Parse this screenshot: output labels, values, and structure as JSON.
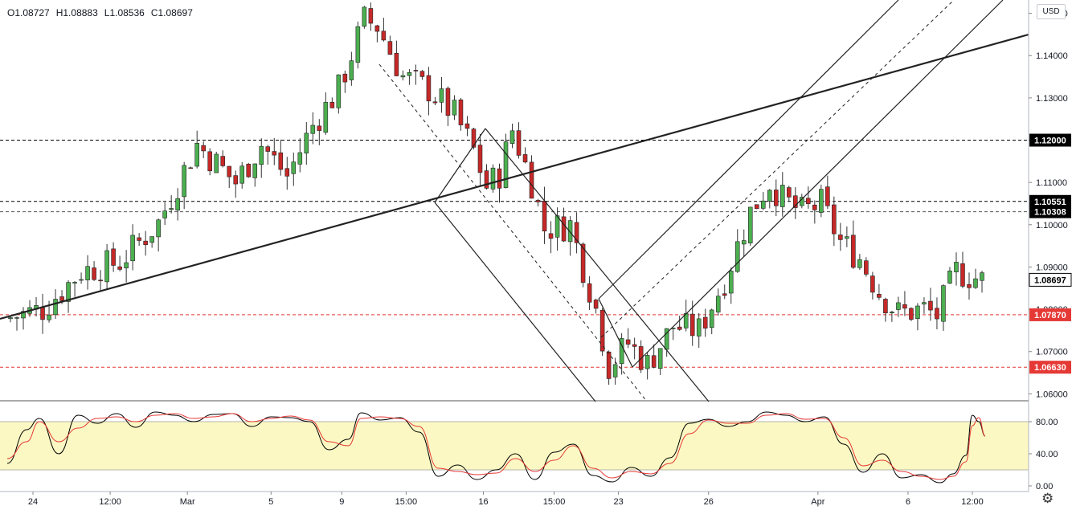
{
  "ohlc": {
    "open": "O1.08727",
    "high": "H1.08883",
    "low": "L1.08536",
    "close": "C1.08697"
  },
  "currency": "USD",
  "colors": {
    "up": "#26a69a",
    "down": "#ef5350",
    "candle_up": "#4caf50",
    "candle_down": "#c62828",
    "stoch_k": "#000000",
    "stoch_d": "#e53935",
    "band": "#fbf8c3",
    "red_level": "#e53935"
  },
  "icons": {
    "settings": "gear-icon"
  },
  "chart_data": [
    {
      "type": "candlestick",
      "title": "",
      "ylim": [
        1.0595,
        1.1503
      ],
      "x_tick_labels": [
        "24",
        "12:00",
        "Mar",
        "5",
        "9",
        "15:00",
        "16",
        "15:00",
        "23",
        "26",
        "Apr",
        "6",
        "12:00"
      ],
      "y_tick_labels": [
        "1.06000",
        "1.07000",
        "1.08000",
        "1.09000",
        "1.10000",
        "1.11000",
        "1.12000",
        "1.13000",
        "1.14000",
        "1.15000"
      ],
      "y_ticks": [
        1.06,
        1.07,
        1.08,
        1.09,
        1.1,
        1.11,
        1.12,
        1.13,
        1.14,
        1.15
      ],
      "price_labels": [
        {
          "value": "1.12000",
          "level": 1.12,
          "style": "dark"
        },
        {
          "value": "1.10551",
          "level": 1.10551,
          "style": "dark"
        },
        {
          "value": "1.10308",
          "level": 1.10308,
          "style": "dark"
        },
        {
          "value": "1.08697",
          "level": 1.08697,
          "style": "current"
        },
        {
          "value": "1.07870",
          "level": 1.0787,
          "style": "red"
        },
        {
          "value": "1.06630",
          "level": 1.0663,
          "style": "red"
        }
      ],
      "horizontal_levels": [
        {
          "y": 1.12,
          "color": "#000000",
          "style": "dashed"
        },
        {
          "y": 1.10551,
          "color": "#000000",
          "style": "dashed"
        },
        {
          "y": 1.10308,
          "color": "#555555",
          "style": "dashed"
        },
        {
          "y": 1.0787,
          "color": "#e53935",
          "style": "dashed"
        },
        {
          "y": 1.0663,
          "color": "#e53935",
          "style": "dashed"
        }
      ],
      "anchors": [
        [
          0,
          1.0777
        ],
        [
          6,
          1.08
        ],
        [
          12,
          1.089
        ],
        [
          18,
          1.0912
        ],
        [
          24,
          1.1005
        ],
        [
          30,
          1.119
        ],
        [
          36,
          1.11
        ],
        [
          40,
          1.119
        ],
        [
          44,
          1.1115
        ],
        [
          48,
          1.1235
        ],
        [
          52,
          1.132
        ],
        [
          56,
          1.1485
        ],
        [
          58,
          1.147
        ],
        [
          62,
          1.135
        ],
        [
          66,
          1.132
        ],
        [
          70,
          1.126
        ],
        [
          73,
          1.1175
        ],
        [
          75,
          1.109
        ],
        [
          77,
          1.112
        ],
        [
          79,
          1.1225
        ],
        [
          82,
          1.11
        ],
        [
          84,
          1.099
        ],
        [
          88,
          1.1
        ],
        [
          90,
          1.09
        ],
        [
          92,
          1.08
        ],
        [
          94,
          1.0665
        ],
        [
          97,
          1.072
        ],
        [
          100,
          1.067
        ],
        [
          104,
          1.076
        ],
        [
          108,
          1.075
        ],
        [
          112,
          1.087
        ],
        [
          116,
          1.103
        ],
        [
          119,
          1.11
        ],
        [
          121,
          1.106
        ],
        [
          124,
          1.103
        ],
        [
          127,
          1.105
        ],
        [
          130,
          1.096
        ],
        [
          133,
          1.092
        ],
        [
          136,
          1.084
        ],
        [
          139,
          1.079
        ],
        [
          143,
          1.08
        ],
        [
          145,
          1.0785
        ],
        [
          148,
          1.089
        ],
        [
          152,
          1.0869
        ]
      ],
      "candle_count": 152,
      "stochastic": {
        "ylim": [
          0,
          100
        ],
        "y_tick_labels": [
          "0.00",
          "40.00",
          "80.00"
        ],
        "y_ticks": [
          0,
          40,
          80
        ],
        "band": [
          20,
          80
        ],
        "k_series": [
          [
            0,
            28
          ],
          [
            3,
            70
          ],
          [
            5,
            84
          ],
          [
            8,
            40
          ],
          [
            11,
            88
          ],
          [
            14,
            78
          ],
          [
            17,
            90
          ],
          [
            20,
            73
          ],
          [
            23,
            92
          ],
          [
            26,
            88
          ],
          [
            29,
            80
          ],
          [
            32,
            89
          ],
          [
            35,
            90
          ],
          [
            38,
            74
          ],
          [
            41,
            86
          ],
          [
            44,
            85
          ],
          [
            47,
            80
          ],
          [
            50,
            45
          ],
          [
            53,
            58
          ],
          [
            55,
            91
          ],
          [
            58,
            82
          ],
          [
            61,
            85
          ],
          [
            64,
            67
          ],
          [
            67,
            12
          ],
          [
            70,
            26
          ],
          [
            73,
            8
          ],
          [
            76,
            20
          ],
          [
            79,
            40
          ],
          [
            82,
            8
          ],
          [
            85,
            42
          ],
          [
            88,
            52
          ],
          [
            91,
            13
          ],
          [
            94,
            5
          ],
          [
            97,
            23
          ],
          [
            100,
            12
          ],
          [
            103,
            35
          ],
          [
            106,
            78
          ],
          [
            109,
            83
          ],
          [
            112,
            74
          ],
          [
            115,
            80
          ],
          [
            118,
            92
          ],
          [
            121,
            88
          ],
          [
            124,
            80
          ],
          [
            127,
            86
          ],
          [
            130,
            52
          ],
          [
            133,
            17
          ],
          [
            136,
            40
          ],
          [
            139,
            10
          ],
          [
            142,
            14
          ],
          [
            145,
            4
          ],
          [
            147,
            15
          ],
          [
            149,
            38
          ],
          [
            150,
            88
          ],
          [
            151,
            80
          ],
          [
            152,
            62
          ]
        ],
        "d_series": [
          [
            0,
            34
          ],
          [
            3,
            55
          ],
          [
            5,
            80
          ],
          [
            8,
            55
          ],
          [
            11,
            72
          ],
          [
            14,
            84
          ],
          [
            17,
            86
          ],
          [
            20,
            80
          ],
          [
            23,
            88
          ],
          [
            26,
            90
          ],
          [
            29,
            84
          ],
          [
            32,
            86
          ],
          [
            35,
            90
          ],
          [
            38,
            80
          ],
          [
            41,
            84
          ],
          [
            44,
            87
          ],
          [
            47,
            82
          ],
          [
            50,
            55
          ],
          [
            53,
            50
          ],
          [
            55,
            84
          ],
          [
            58,
            86
          ],
          [
            61,
            84
          ],
          [
            64,
            74
          ],
          [
            67,
            22
          ],
          [
            70,
            18
          ],
          [
            73,
            14
          ],
          [
            76,
            16
          ],
          [
            79,
            34
          ],
          [
            82,
            18
          ],
          [
            85,
            32
          ],
          [
            88,
            50
          ],
          [
            91,
            22
          ],
          [
            94,
            10
          ],
          [
            97,
            18
          ],
          [
            100,
            15
          ],
          [
            103,
            28
          ],
          [
            106,
            65
          ],
          [
            109,
            82
          ],
          [
            112,
            78
          ],
          [
            115,
            78
          ],
          [
            118,
            88
          ],
          [
            121,
            90
          ],
          [
            124,
            83
          ],
          [
            127,
            84
          ],
          [
            130,
            60
          ],
          [
            133,
            25
          ],
          [
            136,
            32
          ],
          [
            139,
            18
          ],
          [
            142,
            12
          ],
          [
            145,
            8
          ],
          [
            147,
            12
          ],
          [
            149,
            30
          ],
          [
            150,
            75
          ],
          [
            151,
            85
          ],
          [
            152,
            62
          ]
        ]
      }
    }
  ]
}
